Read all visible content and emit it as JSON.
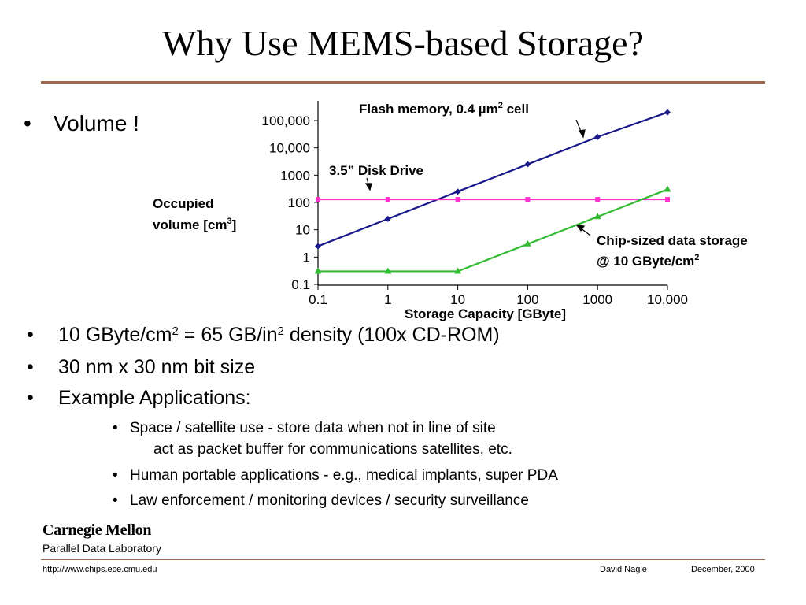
{
  "slide": {
    "title": "Why Use MEMS-based Storage?",
    "bullet_char": "•",
    "top_bullet": "Volume !",
    "bullets": [
      {
        "pre": "10 GByte/cm",
        "sup1": "2",
        "mid": " = 65 GB/in",
        "sup2": "2",
        "post": " density (100x CD-ROM)"
      },
      {
        "text": "30 nm x 30 nm bit size"
      },
      {
        "text": "Example Applications:"
      }
    ],
    "sub_bullets": [
      {
        "text": "Space / satellite use -  store data when not in line of site",
        "continuation": "act as packet buffer for communications satellites, etc."
      },
      {
        "text": "Human portable applications - e.g., medical implants, super PDA"
      },
      {
        "text": "Law enforcement / monitoring devices / security surveillance"
      }
    ]
  },
  "logo": {
    "name": "Carnegie Mellon",
    "lab": "Parallel Data Laboratory"
  },
  "footer": {
    "url": "http://www.chips.ece.cmu.edu",
    "author": "David Nagle",
    "date": "December, 2000"
  },
  "colors": {
    "rule": "#a0664f",
    "flash": "#1a1a8c",
    "disk": "#ff33cc",
    "chip": "#33bb33"
  },
  "chart_data": {
    "type": "line",
    "scale": "log-log",
    "xlabel": "Storage Capacity [GByte]",
    "ylabel_line1": "Occupied",
    "ylabel_line2_pre": "volume [cm",
    "ylabel_line2_sup": "3",
    "ylabel_line2_post": "]",
    "xlim": [
      0.1,
      10000
    ],
    "ylim": [
      0.1,
      100000
    ],
    "x_tick_values": [
      0.1,
      1,
      10,
      100,
      1000,
      10000
    ],
    "x_tick_labels": [
      "0.1",
      "1",
      "10",
      "100",
      "1000",
      "10,000"
    ],
    "y_tick_values": [
      0.1,
      1,
      10,
      100,
      1000,
      10000,
      100000
    ],
    "y_tick_labels": [
      "0.1",
      "1",
      "10",
      "100",
      "1000",
      "10,000",
      "100,000"
    ],
    "series": [
      {
        "name": "Flash memory, 0.4 µm2 cell",
        "label_pre": "Flash memory, 0.4 µm",
        "label_sup": "2",
        "label_post": " cell",
        "color": "#1a1a8c",
        "marker": "diamond",
        "x": [
          0.1,
          1,
          10,
          100,
          1000,
          10000
        ],
        "y": [
          2.5,
          25,
          250,
          2500,
          25000,
          250000
        ]
      },
      {
        "name": "3.5” Disk Drive",
        "label_pre": "3.5” Disk Drive",
        "color": "#ff33cc",
        "marker": "square",
        "x": [
          0.1,
          1,
          10,
          100,
          1000,
          10000
        ],
        "y": [
          130,
          130,
          130,
          130,
          130,
          130
        ]
      },
      {
        "name": "Chip-sized data storage @ 10 GByte/cm2",
        "label_pre": "Chip-sized data storage",
        "label2_pre": "@ 10 GByte/cm",
        "label2_sup": "2",
        "color": "#33bb33",
        "marker": "triangle",
        "x": [
          0.1,
          1,
          10,
          100,
          1000,
          10000
        ],
        "y": [
          0.3,
          0.3,
          0.3,
          3,
          30,
          300
        ]
      }
    ]
  }
}
